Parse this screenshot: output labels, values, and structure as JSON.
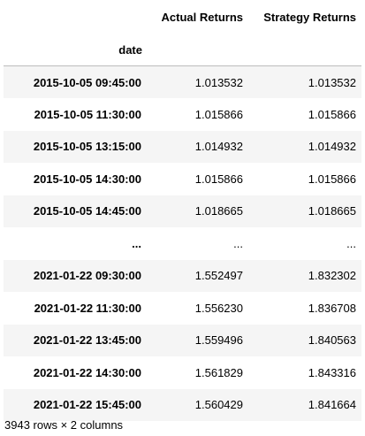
{
  "table": {
    "index_header": "",
    "columns": [
      "Actual Returns",
      "Strategy Returns"
    ],
    "index_name": "date",
    "rows": [
      {
        "index": "2015-10-05 09:45:00",
        "values": [
          "1.013532",
          "1.013532"
        ]
      },
      {
        "index": "2015-10-05 11:30:00",
        "values": [
          "1.015866",
          "1.015866"
        ]
      },
      {
        "index": "2015-10-05 13:15:00",
        "values": [
          "1.014932",
          "1.014932"
        ]
      },
      {
        "index": "2015-10-05 14:30:00",
        "values": [
          "1.015866",
          "1.015866"
        ]
      },
      {
        "index": "2015-10-05 14:45:00",
        "values": [
          "1.018665",
          "1.018665"
        ]
      },
      {
        "index": "...",
        "values": [
          "...",
          "..."
        ]
      },
      {
        "index": "2021-01-22 09:30:00",
        "values": [
          "1.552497",
          "1.832302"
        ]
      },
      {
        "index": "2021-01-22 11:30:00",
        "values": [
          "1.556230",
          "1.836708"
        ]
      },
      {
        "index": "2021-01-22 13:45:00",
        "values": [
          "1.559496",
          "1.840563"
        ]
      },
      {
        "index": "2021-01-22 14:30:00",
        "values": [
          "1.561829",
          "1.843316"
        ]
      },
      {
        "index": "2021-01-22 15:45:00",
        "values": [
          "1.560429",
          "1.841664"
        ]
      }
    ]
  },
  "shape_text": "3943 rows × 2 columns"
}
